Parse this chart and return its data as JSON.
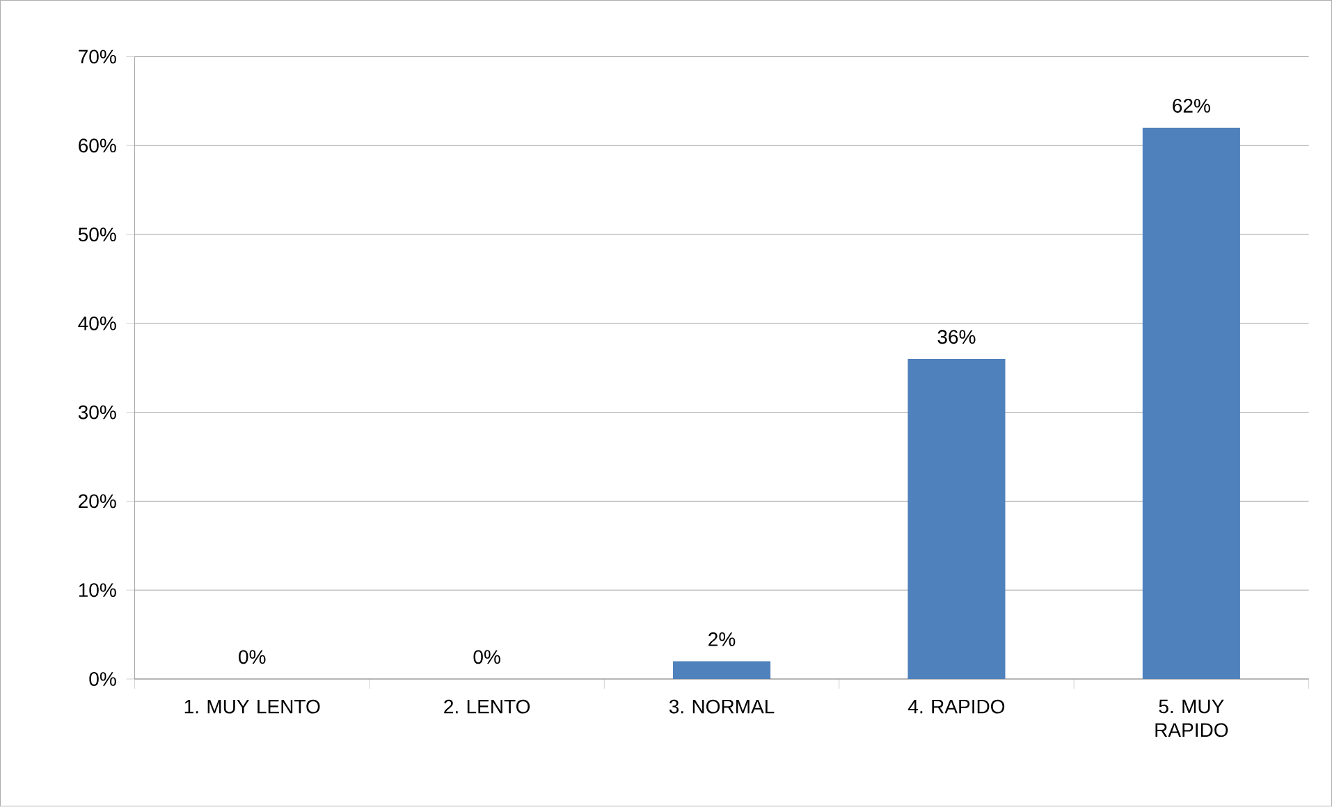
{
  "chart_data": {
    "type": "bar",
    "categories": [
      "1. MUY LENTO",
      "2. LENTO",
      "3. NORMAL",
      "4. RAPIDO",
      "5. MUY RAPIDO"
    ],
    "values": [
      0,
      0,
      2,
      36,
      62
    ],
    "value_labels": [
      "0%",
      "0%",
      "2%",
      "36%",
      "62%"
    ],
    "color": "#4f81bd",
    "ylim": [
      0,
      70
    ],
    "yticks": [
      {
        "value": 0,
        "label": "0%"
      },
      {
        "value": 10,
        "label": "10%"
      },
      {
        "value": 20,
        "label": "20%"
      },
      {
        "value": 30,
        "label": "30%"
      },
      {
        "value": 40,
        "label": "40%"
      },
      {
        "value": 50,
        "label": "50%"
      },
      {
        "value": 60,
        "label": "60%"
      },
      {
        "value": 70,
        "label": "70%"
      }
    ],
    "grid": "y"
  }
}
